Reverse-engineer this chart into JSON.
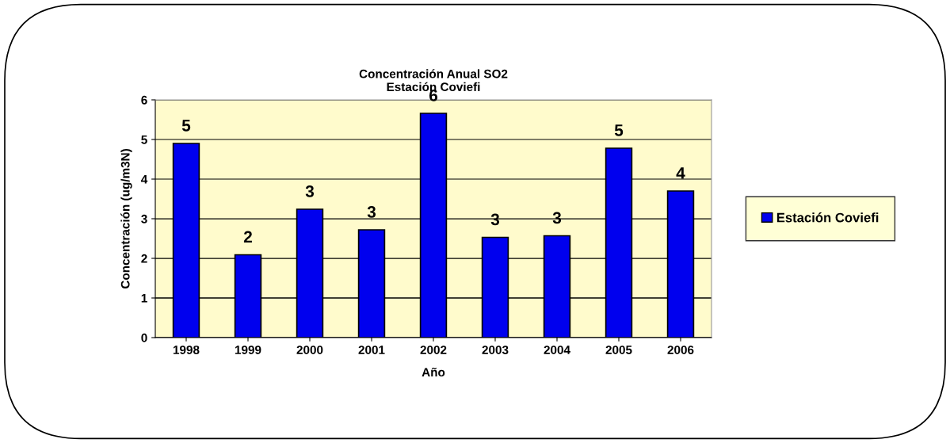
{
  "chart_data": {
    "type": "bar",
    "title": "Concentración Anual SO2\nEstación Coviefi",
    "xlabel": "Año",
    "ylabel": "Concentración (ug/m3N)",
    "categories": [
      "1998",
      "1999",
      "2000",
      "2001",
      "2002",
      "2003",
      "2004",
      "2005",
      "2006"
    ],
    "series": [
      {
        "name": "Estación Coviefi",
        "color": "#0000ee",
        "values": [
          4.9,
          2.09,
          3.24,
          2.72,
          5.66,
          2.53,
          2.57,
          4.78,
          3.7
        ],
        "value_labels": [
          "5",
          "2",
          "3",
          "3",
          "6",
          "3",
          "3",
          "5",
          "4"
        ]
      }
    ],
    "ylim": [
      0,
      6
    ],
    "yticks": [
      0,
      1,
      2,
      3,
      4,
      5,
      6
    ],
    "grid": "y",
    "legend": "right"
  }
}
